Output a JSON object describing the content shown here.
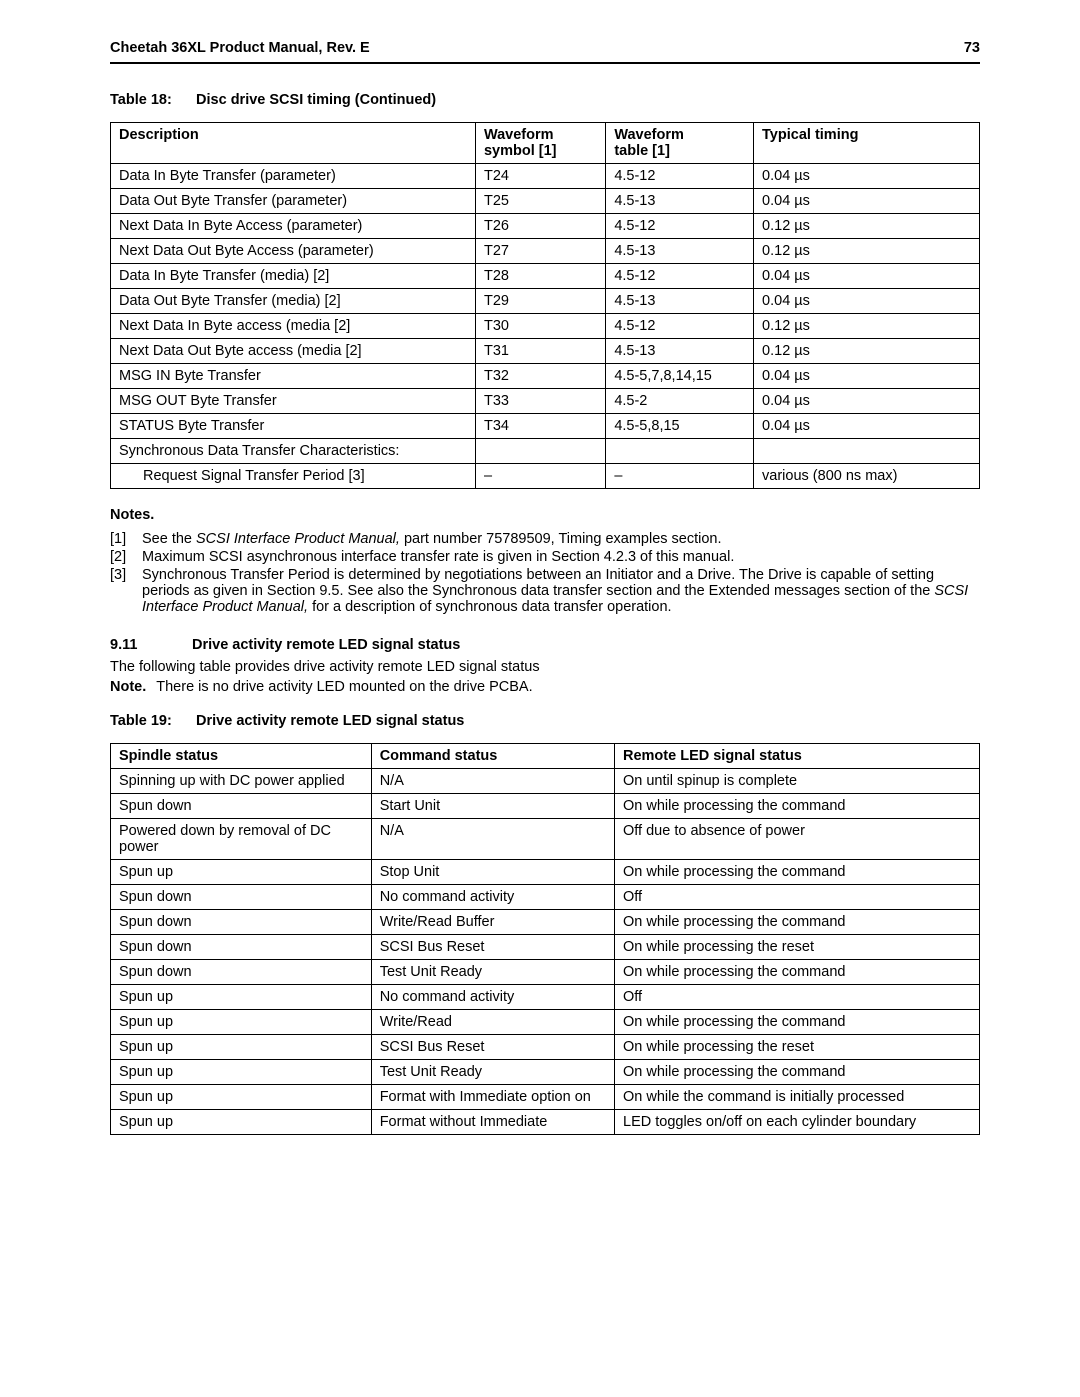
{
  "header": {
    "title": "Cheetah 36XL Product Manual, Rev. E",
    "page": "73"
  },
  "table18": {
    "caption_num": "Table 18:",
    "caption_txt": "Disc drive SCSI timing (Continued)",
    "columns": [
      "Description",
      "Waveform symbol [1]",
      "Waveform table [1]",
      "Typical timing"
    ],
    "rows": [
      {
        "c": [
          "Data In Byte Transfer (parameter)",
          "T24",
          "4.5-12",
          "0.04 µs"
        ]
      },
      {
        "c": [
          "Data Out Byte Transfer (parameter)",
          "T25",
          "4.5-13",
          "0.04 µs"
        ]
      },
      {
        "c": [
          "Next Data In Byte Access (parameter)",
          "T26",
          "4.5-12",
          "0.12 µs"
        ]
      },
      {
        "c": [
          "Next Data Out Byte Access (parameter)",
          "T27",
          "4.5-13",
          "0.12 µs"
        ]
      },
      {
        "c": [
          "Data In Byte Transfer (media) [2]",
          "T28",
          "4.5-12",
          "0.04 µs"
        ]
      },
      {
        "c": [
          "Data Out Byte Transfer (media) [2]",
          "T29",
          "4.5-13",
          "0.04 µs"
        ]
      },
      {
        "c": [
          "Next Data In Byte access (media [2]",
          "T30",
          "4.5-12",
          "0.12 µs"
        ]
      },
      {
        "c": [
          "Next Data Out Byte access (media [2]",
          "T31",
          "4.5-13",
          "0.12 µs"
        ]
      },
      {
        "c": [
          "MSG IN Byte Transfer",
          "T32",
          "4.5-5,7,8,14,15",
          "0.04 µs"
        ]
      },
      {
        "c": [
          "MSG OUT Byte Transfer",
          "T33",
          "4.5-2",
          "0.04 µs"
        ]
      },
      {
        "c": [
          "STATUS Byte Transfer",
          "T34",
          "4.5-5,8,15",
          "0.04 µs"
        ]
      },
      {
        "c": [
          "Synchronous Data Transfer Characteristics:",
          "",
          "",
          ""
        ]
      },
      {
        "c": [
          "Request Signal Transfer Period [3]",
          "–",
          "–",
          "various (800 ns max)"
        ],
        "indent": true
      }
    ]
  },
  "notes": {
    "heading": "Notes.",
    "items": [
      {
        "idx": "[1]",
        "pre": "See the ",
        "ital": "SCSI Interface Product Manual,",
        "post": " part number 75789509, Timing examples section."
      },
      {
        "idx": "[2]",
        "pre": "Maximum SCSI asynchronous interface transfer rate is given in Section 4.2.3 of this manual.",
        "ital": "",
        "post": ""
      },
      {
        "idx": "[3]",
        "pre": "Synchronous Transfer Period is determined by negotiations between an Initiator and a Drive. The Drive is capable of setting periods as given in Section 9.5. See also the Synchronous data transfer section and the Extended messages section of the ",
        "ital": "SCSI Interface Product Manual,",
        "post": " for a description of synchronous data transfer operation."
      }
    ]
  },
  "section": {
    "num": "9.11",
    "title": "Drive activity remote LED signal status",
    "intro": "The following table provides drive activity remote LED signal status",
    "note_label": "Note.",
    "note_text": "There is no drive activity LED mounted on the drive PCBA."
  },
  "table19": {
    "caption_num": "Table 19:",
    "caption_txt": "Drive activity remote LED signal status",
    "columns": [
      "Spindle status",
      "Command status",
      "Remote LED signal status"
    ],
    "rows": [
      [
        "Spinning up with DC power applied",
        "N/A",
        "On until spinup is complete"
      ],
      [
        "Spun down",
        "Start Unit",
        "On while processing the command"
      ],
      [
        "Powered down by removal of DC power",
        "N/A",
        "Off due to absence of power"
      ],
      [
        "Spun up",
        "Stop Unit",
        "On while processing the command"
      ],
      [
        "Spun down",
        "No command activity",
        "Off"
      ],
      [
        "Spun down",
        "Write/Read Buffer",
        "On while processing the command"
      ],
      [
        "Spun down",
        "SCSI Bus Reset",
        "On while processing the reset"
      ],
      [
        "Spun down",
        "Test Unit Ready",
        "On while processing the command"
      ],
      [
        "Spun up",
        "No command activity",
        "Off"
      ],
      [
        "Spun up",
        "Write/Read",
        "On while processing the command"
      ],
      [
        "Spun up",
        "SCSI Bus Reset",
        "On while processing the reset"
      ],
      [
        "Spun up",
        "Test Unit Ready",
        "On while processing the command"
      ],
      [
        "Spun up",
        "Format with Immediate option on",
        "On while the command is initially processed"
      ],
      [
        "Spun up",
        "Format without Immediate",
        "LED toggles on/off on each cylinder boundary"
      ]
    ]
  }
}
